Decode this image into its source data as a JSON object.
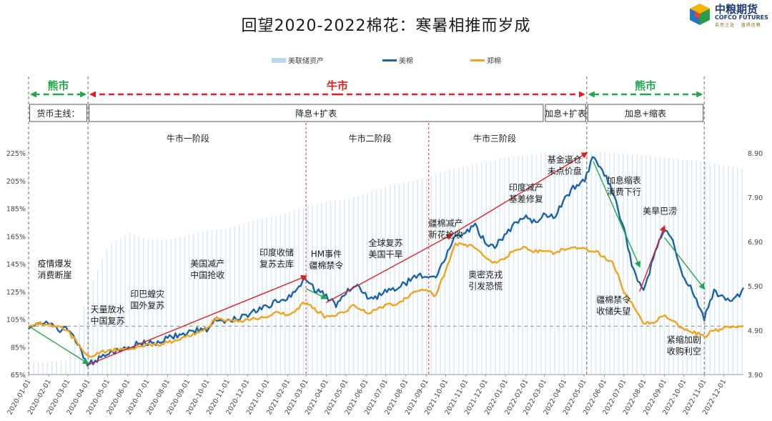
{
  "title": "回望2020-2022棉花：寒暑相推而岁成",
  "logo": {
    "name": "中粮期货",
    "en": "COFCO FUTURES",
    "slogan": "自然之选 · 值得信赖"
  },
  "chart_data": {
    "type": "line",
    "legend": {
      "position": "top-center",
      "items": [
        {
          "name": "美联储资产",
          "color": "#bcd9f0"
        },
        {
          "name": "美棉",
          "color": "#1b63a8"
        },
        {
          "name": "郑棉",
          "color": "#f2a21b"
        }
      ]
    },
    "x_tick_labels": [
      "2020-01-01",
      "2020-02-01",
      "2020-03-01",
      "2020-04-01",
      "2020-05-01",
      "2020-06-01",
      "2020-07-01",
      "2020-08-01",
      "2020-09-01",
      "2020-10-01",
      "2020-11-01",
      "2020-12-01",
      "2021-01-01",
      "2021-02-01",
      "2021-03-01",
      "2021-04-01",
      "2021-05-01",
      "2021-06-01",
      "2021-07-01",
      "2021-08-01",
      "2021-09-01",
      "2021-10-01",
      "2021-11-01",
      "2021-12-01",
      "2022-01-01",
      "2022-02-01",
      "2022-03-01",
      "2022-04-01",
      "2022-05-01",
      "2022-06-01",
      "2022-07-01",
      "2022-08-01",
      "2022-09-01",
      "2022-10-01",
      "2022-11-01",
      "2022-12-01"
    ],
    "y_left": {
      "ticks": [
        "65%",
        "85%",
        "105%",
        "125%",
        "145%",
        "165%",
        "185%",
        "205%",
        "225%"
      ],
      "min": 65,
      "max": 225
    },
    "y_right": {
      "ticks": [
        "3.90",
        "4.90",
        "5.90",
        "6.90",
        "7.90",
        "8.90"
      ],
      "min": 3.9,
      "max": 8.9
    },
    "baseline_pct": 100,
    "series": [
      {
        "name": "美棉",
        "axis": "left",
        "points": [
          [
            "2020-01-01",
            100
          ],
          [
            "2020-01-15",
            103
          ],
          [
            "2020-02-01",
            102
          ],
          [
            "2020-02-15",
            97
          ],
          [
            "2020-03-01",
            98
          ],
          [
            "2020-03-15",
            88
          ],
          [
            "2020-04-01",
            72
          ],
          [
            "2020-04-15",
            76
          ],
          [
            "2020-05-01",
            80
          ],
          [
            "2020-05-15",
            82
          ],
          [
            "2020-06-01",
            84
          ],
          [
            "2020-06-15",
            87
          ],
          [
            "2020-07-01",
            88
          ],
          [
            "2020-07-15",
            88
          ],
          [
            "2020-08-01",
            91
          ],
          [
            "2020-08-15",
            93
          ],
          [
            "2020-09-01",
            95
          ],
          [
            "2020-09-15",
            97
          ],
          [
            "2020-10-01",
            98
          ],
          [
            "2020-10-15",
            105
          ],
          [
            "2020-11-01",
            104
          ],
          [
            "2020-11-15",
            106
          ],
          [
            "2020-12-01",
            108
          ],
          [
            "2020-12-15",
            112
          ],
          [
            "2021-01-01",
            114
          ],
          [
            "2021-01-15",
            118
          ],
          [
            "2021-02-01",
            120
          ],
          [
            "2021-02-15",
            128
          ],
          [
            "2021-03-01",
            135
          ],
          [
            "2021-03-15",
            126
          ],
          [
            "2021-04-01",
            122
          ],
          [
            "2021-04-15",
            115
          ],
          [
            "2021-05-01",
            125
          ],
          [
            "2021-05-15",
            130
          ],
          [
            "2021-06-01",
            122
          ],
          [
            "2021-06-15",
            120
          ],
          [
            "2021-07-01",
            126
          ],
          [
            "2021-07-15",
            127
          ],
          [
            "2021-08-01",
            131
          ],
          [
            "2021-08-15",
            136
          ],
          [
            "2021-09-01",
            137
          ],
          [
            "2021-09-15",
            134
          ],
          [
            "2021-10-01",
            150
          ],
          [
            "2021-10-15",
            165
          ],
          [
            "2021-11-01",
            168
          ],
          [
            "2021-11-15",
            172
          ],
          [
            "2021-12-01",
            160
          ],
          [
            "2021-12-15",
            158
          ],
          [
            "2022-01-01",
            166
          ],
          [
            "2022-01-15",
            174
          ],
          [
            "2022-02-01",
            178
          ],
          [
            "2022-02-15",
            175
          ],
          [
            "2022-03-01",
            182
          ],
          [
            "2022-03-15",
            178
          ],
          [
            "2022-04-01",
            192
          ],
          [
            "2022-04-15",
            200
          ],
          [
            "2022-05-01",
            205
          ],
          [
            "2022-05-15",
            222
          ],
          [
            "2022-06-01",
            210
          ],
          [
            "2022-06-15",
            195
          ],
          [
            "2022-07-01",
            170
          ],
          [
            "2022-07-15",
            140
          ],
          [
            "2022-08-01",
            125
          ],
          [
            "2022-08-15",
            150
          ],
          [
            "2022-09-01",
            170
          ],
          [
            "2022-09-15",
            160
          ],
          [
            "2022-10-01",
            135
          ],
          [
            "2022-10-15",
            125
          ],
          [
            "2022-11-01",
            105
          ],
          [
            "2022-11-15",
            125
          ],
          [
            "2022-12-01",
            120
          ],
          [
            "2022-12-15",
            118
          ],
          [
            "2022-12-31",
            126
          ]
        ]
      },
      {
        "name": "郑棉",
        "axis": "left",
        "points": [
          [
            "2020-01-01",
            100
          ],
          [
            "2020-01-15",
            102
          ],
          [
            "2020-02-01",
            101
          ],
          [
            "2020-02-15",
            100
          ],
          [
            "2020-03-01",
            96
          ],
          [
            "2020-03-15",
            88
          ],
          [
            "2020-04-01",
            78
          ],
          [
            "2020-04-15",
            80
          ],
          [
            "2020-05-01",
            82
          ],
          [
            "2020-05-15",
            83
          ],
          [
            "2020-06-01",
            83
          ],
          [
            "2020-06-15",
            85
          ],
          [
            "2020-07-01",
            87
          ],
          [
            "2020-07-15",
            86
          ],
          [
            "2020-08-01",
            88
          ],
          [
            "2020-08-15",
            90
          ],
          [
            "2020-09-01",
            93
          ],
          [
            "2020-09-15",
            95
          ],
          [
            "2020-10-01",
            98
          ],
          [
            "2020-10-15",
            107
          ],
          [
            "2020-11-01",
            103
          ],
          [
            "2020-11-15",
            104
          ],
          [
            "2020-12-01",
            104
          ],
          [
            "2020-12-15",
            106
          ],
          [
            "2021-01-01",
            107
          ],
          [
            "2021-01-15",
            110
          ],
          [
            "2021-02-01",
            108
          ],
          [
            "2021-02-15",
            112
          ],
          [
            "2021-03-01",
            118
          ],
          [
            "2021-03-15",
            112
          ],
          [
            "2021-04-01",
            106
          ],
          [
            "2021-04-15",
            107
          ],
          [
            "2021-05-01",
            111
          ],
          [
            "2021-05-15",
            115
          ],
          [
            "2021-06-01",
            110
          ],
          [
            "2021-06-15",
            111
          ],
          [
            "2021-07-01",
            115
          ],
          [
            "2021-07-15",
            116
          ],
          [
            "2021-08-01",
            120
          ],
          [
            "2021-08-15",
            125
          ],
          [
            "2021-09-01",
            126
          ],
          [
            "2021-09-15",
            122
          ],
          [
            "2021-10-01",
            140
          ],
          [
            "2021-10-15",
            160
          ],
          [
            "2021-11-01",
            158
          ],
          [
            "2021-11-15",
            157
          ],
          [
            "2021-12-01",
            150
          ],
          [
            "2021-12-15",
            146
          ],
          [
            "2022-01-01",
            150
          ],
          [
            "2022-01-15",
            155
          ],
          [
            "2022-02-01",
            157
          ],
          [
            "2022-02-15",
            154
          ],
          [
            "2022-03-01",
            155
          ],
          [
            "2022-03-15",
            152
          ],
          [
            "2022-04-01",
            156
          ],
          [
            "2022-04-15",
            157
          ],
          [
            "2022-05-01",
            155
          ],
          [
            "2022-05-15",
            155
          ],
          [
            "2022-06-01",
            150
          ],
          [
            "2022-06-15",
            145
          ],
          [
            "2022-07-01",
            125
          ],
          [
            "2022-07-15",
            115
          ],
          [
            "2022-08-01",
            102
          ],
          [
            "2022-08-15",
            103
          ],
          [
            "2022-09-01",
            108
          ],
          [
            "2022-09-15",
            103
          ],
          [
            "2022-10-01",
            98
          ],
          [
            "2022-10-15",
            96
          ],
          [
            "2022-11-01",
            92
          ],
          [
            "2022-11-15",
            97
          ],
          [
            "2022-12-01",
            98
          ],
          [
            "2022-12-15",
            100
          ],
          [
            "2022-12-31",
            100
          ]
        ]
      },
      {
        "name": "美联储资产",
        "axis": "right",
        "points": [
          [
            "2020-01-01",
            4.17
          ],
          [
            "2020-02-01",
            4.18
          ],
          [
            "2020-03-01",
            4.24
          ],
          [
            "2020-03-15",
            4.9
          ],
          [
            "2020-04-01",
            5.8
          ],
          [
            "2020-05-01",
            6.8
          ],
          [
            "2020-06-01",
            7.1
          ],
          [
            "2020-07-01",
            6.95
          ],
          [
            "2020-08-01",
            6.95
          ],
          [
            "2020-09-01",
            7.05
          ],
          [
            "2020-10-01",
            7.15
          ],
          [
            "2020-11-01",
            7.2
          ],
          [
            "2020-12-01",
            7.35
          ],
          [
            "2021-01-01",
            7.45
          ],
          [
            "2021-02-01",
            7.55
          ],
          [
            "2021-03-01",
            7.7
          ],
          [
            "2021-04-01",
            7.8
          ],
          [
            "2021-05-01",
            7.85
          ],
          [
            "2021-06-01",
            8.0
          ],
          [
            "2021-07-01",
            8.15
          ],
          [
            "2021-08-01",
            8.25
          ],
          [
            "2021-09-01",
            8.35
          ],
          [
            "2021-10-01",
            8.5
          ],
          [
            "2021-11-01",
            8.6
          ],
          [
            "2021-12-01",
            8.7
          ],
          [
            "2022-01-01",
            8.8
          ],
          [
            "2022-02-01",
            8.85
          ],
          [
            "2022-03-01",
            8.9
          ],
          [
            "2022-04-01",
            8.92
          ],
          [
            "2022-05-01",
            8.95
          ],
          [
            "2022-06-01",
            8.92
          ],
          [
            "2022-07-01",
            8.88
          ],
          [
            "2022-08-01",
            8.85
          ],
          [
            "2022-09-01",
            8.8
          ],
          [
            "2022-10-01",
            8.75
          ],
          [
            "2022-11-01",
            8.7
          ],
          [
            "2022-12-01",
            8.62
          ],
          [
            "2022-12-31",
            8.55
          ]
        ]
      }
    ],
    "trend_arrows": [
      {
        "from": [
          "2020-01-01",
          100
        ],
        "to": [
          "2020-04-01",
          73
        ],
        "color": "#22a84a"
      },
      {
        "from": [
          "2020-04-01",
          72
        ],
        "to": [
          "2021-03-01",
          136
        ],
        "color": "#e02020"
      },
      {
        "from": [
          "2021-03-01",
          127
        ],
        "to": [
          "2021-04-01",
          120
        ],
        "color": "#22a84a"
      },
      {
        "from": [
          "2021-04-01",
          117
        ],
        "to": [
          "2021-10-10",
          166
        ],
        "color": "#e02020"
      },
      {
        "from": [
          "2021-10-10",
          166
        ],
        "to": [
          "2022-05-05",
          225
        ],
        "color": "#e02020"
      },
      {
        "from": [
          "2022-05-15",
          219
        ],
        "to": [
          "2022-07-25",
          143
        ],
        "color": "#22a84a"
      },
      {
        "from": [
          "2022-07-25",
          125
        ],
        "to": [
          "2022-09-01",
          172
        ],
        "color": "#e02020"
      },
      {
        "from": [
          "2022-09-01",
          164
        ],
        "to": [
          "2022-11-01",
          127
        ],
        "color": "#22a84a"
      }
    ],
    "period_dividers": [
      {
        "date": "2020-01-01",
        "style": "gray",
        "top": "header"
      },
      {
        "date": "2020-04-01",
        "style": "gray",
        "top": "header"
      },
      {
        "date": "2021-03-01",
        "style": "red",
        "top": "stage"
      },
      {
        "date": "2021-09-05",
        "style": "red",
        "top": "stage"
      },
      {
        "date": "2022-05-05",
        "style": "gray",
        "top": "header"
      },
      {
        "date": "2022-11-01",
        "style": "gray",
        "top": "header"
      }
    ],
    "market_phases": [
      {
        "label": "熊市",
        "from": "2020-01-01",
        "to": "2020-04-01",
        "color": "#22a84a"
      },
      {
        "label": "牛市",
        "from": "2020-04-01",
        "to": "2022-05-05",
        "color": "#e02020"
      },
      {
        "label": "熊市",
        "from": "2022-05-05",
        "to": "2022-11-01",
        "color": "#22a84a"
      }
    ],
    "monetary_boxes": [
      {
        "label": "货币主线：",
        "from": "2020-01-01",
        "to": "2020-04-01"
      },
      {
        "label": "降息+扩表",
        "from": "2020-04-01",
        "to": "2022-03-01"
      },
      {
        "label": "加息+扩表",
        "from": "2022-03-01",
        "to": "2022-05-05"
      },
      {
        "label": "加息+缩表",
        "from": "2022-05-05",
        "to": "2022-11-01"
      }
    ],
    "stages": [
      {
        "label": "牛市一阶段",
        "date": "2020-09-01"
      },
      {
        "label": "牛市二阶段",
        "date": "2021-06-07"
      },
      {
        "label": "牛市三阶段",
        "date": "2021-12-15"
      }
    ],
    "annotations": [
      {
        "lines": [
          "疫情爆发",
          "消费断崖"
        ],
        "date": "2020-02-10",
        "value": 143
      },
      {
        "lines": [
          "天量放水",
          "中国复苏"
        ],
        "date": "2020-05-01",
        "value": 110
      },
      {
        "lines": [
          "印巴蝗灾",
          "国外复苏"
        ],
        "date": "2020-07-01",
        "value": 121
      },
      {
        "lines": [
          "美国减产",
          "中国抢收"
        ],
        "date": "2020-10-01",
        "value": 143
      },
      {
        "lines": [
          "印度收储",
          "复苏去库"
        ],
        "date": "2021-01-15",
        "value": 151
      },
      {
        "lines": [
          "HM事件",
          "疆棉禁令"
        ],
        "date": "2021-04-01",
        "value": 150
      },
      {
        "lines": [
          "全球复苏",
          "美国干旱"
        ],
        "date": "2021-07-01",
        "value": 158
      },
      {
        "lines": [
          "疆棉减产",
          "新花抢收"
        ],
        "date": "2021-10-01",
        "value": 172
      },
      {
        "lines": [
          "奥密克戎",
          "引发恐慌"
        ],
        "date": "2021-12-01",
        "value": 135
      },
      {
        "lines": [
          "印度减产",
          "基差修复"
        ],
        "date": "2022-02-01",
        "value": 198
      },
      {
        "lines": [
          "基金逼仓",
          "未点价盘"
        ],
        "date": "2022-04-01",
        "value": 218
      },
      {
        "lines": [
          "加息缩表",
          "消费下行"
        ],
        "date": "2022-07-01",
        "value": 203
      },
      {
        "lines": [
          "美旱巴涝"
        ],
        "date": "2022-08-25",
        "value": 181
      },
      {
        "lines": [
          "疆棉禁令",
          "收储失望"
        ],
        "date": "2022-06-15",
        "value": 117
      },
      {
        "lines": [
          "紧缩加剧",
          "收购利空"
        ],
        "date": "2022-10-01",
        "value": 88
      }
    ]
  }
}
